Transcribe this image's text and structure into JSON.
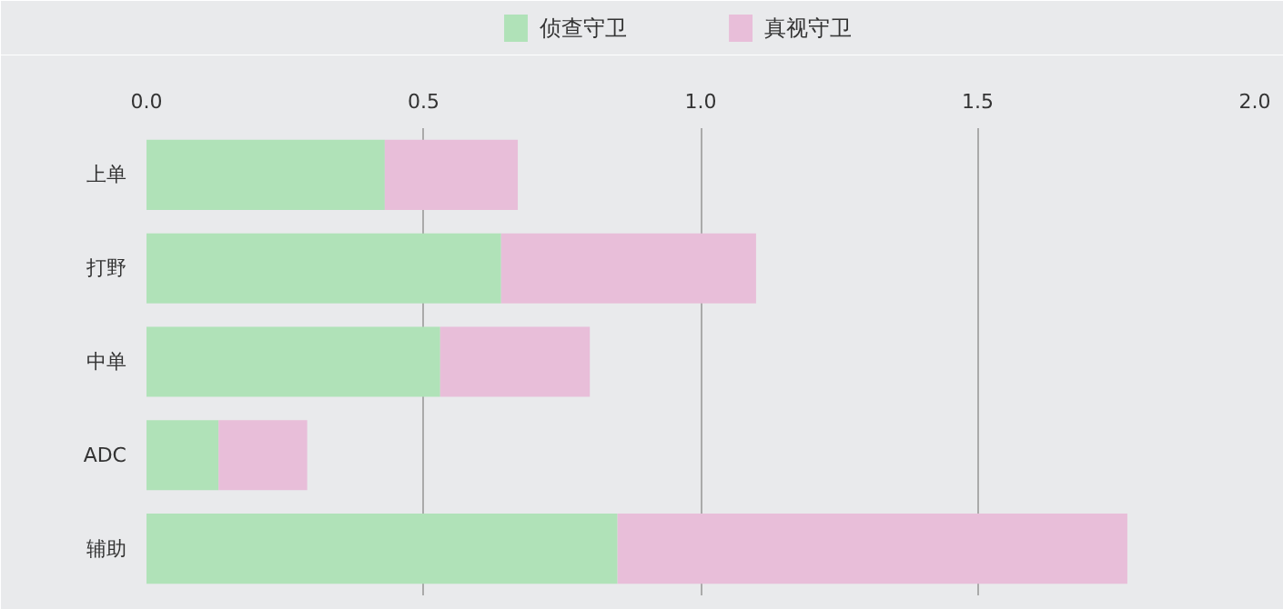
{
  "chart_data": {
    "type": "bar",
    "orientation": "horizontal",
    "stacked": true,
    "categories": [
      "上单",
      "打野",
      "中单",
      "ADC",
      "辅助"
    ],
    "series": [
      {
        "name": "侦查守卫",
        "color": "#b0e2b8",
        "values": [
          0.43,
          0.64,
          0.53,
          0.13,
          0.85
        ]
      },
      {
        "name": "真视守卫",
        "color": "#e8bed9",
        "values": [
          0.24,
          0.46,
          0.27,
          0.16,
          0.92
        ]
      }
    ],
    "xlim": [
      0,
      2
    ],
    "xticks": [
      {
        "value": 0,
        "label": "0.0"
      },
      {
        "value": 0.5,
        "label": "0.5"
      },
      {
        "value": 1,
        "label": "1.0"
      },
      {
        "value": 1.5,
        "label": "1.5"
      },
      {
        "value": 2,
        "label": "2.0"
      }
    ],
    "grid": "x",
    "legend": "top"
  }
}
